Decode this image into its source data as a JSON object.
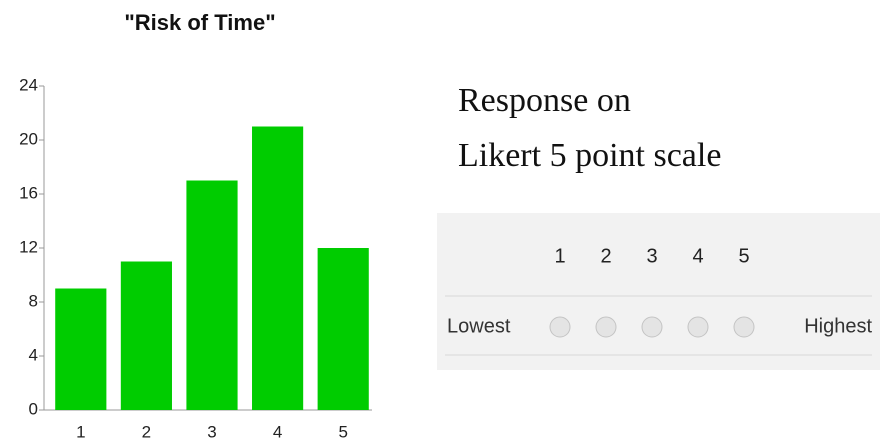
{
  "chart_data": {
    "type": "bar",
    "title": "\"Risk of Time\"",
    "categories": [
      "1",
      "2",
      "3",
      "4",
      "5"
    ],
    "values": [
      9,
      11,
      17,
      21,
      12
    ],
    "color": "#00cc00",
    "ylim": [
      0,
      24
    ],
    "yticks": [
      0,
      4,
      8,
      12,
      16,
      20,
      24
    ],
    "grid": false
  },
  "caption": [
    "Response on",
    "Likert 5 point scale"
  ],
  "likert": {
    "scale": [
      1,
      2,
      3,
      4,
      5
    ],
    "low_label": "Lowest",
    "high_label": "Highest"
  }
}
